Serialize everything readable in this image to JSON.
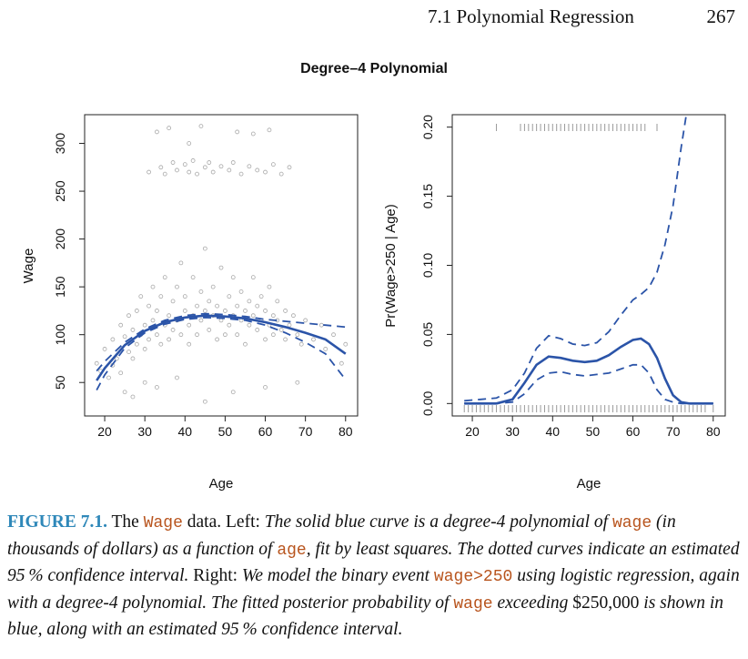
{
  "header": {
    "section": "7.1 Polynomial Regression",
    "page_number": "267"
  },
  "figure": {
    "suptitle": "Degree–4 Polynomial"
  },
  "chart_data": [
    {
      "type": "scatter",
      "title": "",
      "xlabel": "Age",
      "ylabel": "Wage",
      "xlim": [
        15,
        83
      ],
      "ylim": [
        15,
        330
      ],
      "xticks": [
        "20",
        "30",
        "40",
        "50",
        "60",
        "70",
        "80"
      ],
      "yticks": [
        "50",
        "100",
        "150",
        "200",
        "250",
        "300"
      ],
      "grid": false,
      "series": [
        {
          "style": "points",
          "color": "#a8a8a8",
          "points": [
            [
              18,
              70
            ],
            [
              19,
              62
            ],
            [
              20,
              85
            ],
            [
              21,
              55
            ],
            [
              22,
              95
            ],
            [
              22,
              68
            ],
            [
              23,
              75
            ],
            [
              24,
              110
            ],
            [
              24,
              60
            ],
            [
              25,
              98
            ],
            [
              26,
              82
            ],
            [
              26,
              120
            ],
            [
              27,
              105
            ],
            [
              27,
              75
            ],
            [
              28,
              125
            ],
            [
              28,
              90
            ],
            [
              29,
              100
            ],
            [
              29,
              140
            ],
            [
              30,
              110
            ],
            [
              30,
              85
            ],
            [
              31,
              130
            ],
            [
              31,
              95
            ],
            [
              32,
              115
            ],
            [
              32,
              150
            ],
            [
              33,
              100
            ],
            [
              33,
              125
            ],
            [
              34,
              140
            ],
            [
              34,
              90
            ],
            [
              35,
              110
            ],
            [
              35,
              160
            ],
            [
              36,
              120
            ],
            [
              36,
              95
            ],
            [
              37,
              135
            ],
            [
              37,
              105
            ],
            [
              38,
              150
            ],
            [
              38,
              115
            ],
            [
              39,
              100
            ],
            [
              39,
              175
            ],
            [
              40,
              125
            ],
            [
              40,
              140
            ],
            [
              41,
              110
            ],
            [
              41,
              90
            ],
            [
              42,
              160
            ],
            [
              42,
              120
            ],
            [
              43,
              130
            ],
            [
              43,
              100
            ],
            [
              44,
              145
            ],
            [
              44,
              115
            ],
            [
              45,
              125
            ],
            [
              45,
              190
            ],
            [
              46,
              105
            ],
            [
              46,
              135
            ],
            [
              47,
              120
            ],
            [
              47,
              150
            ],
            [
              48,
              95
            ],
            [
              48,
              130
            ],
            [
              49,
              115
            ],
            [
              49,
              170
            ],
            [
              50,
              125
            ],
            [
              50,
              100
            ],
            [
              51,
              140
            ],
            [
              51,
              110
            ],
            [
              52,
              120
            ],
            [
              52,
              160
            ],
            [
              53,
              100
            ],
            [
              53,
              130
            ],
            [
              54,
              115
            ],
            [
              54,
              145
            ],
            [
              55,
              125
            ],
            [
              55,
              90
            ],
            [
              56,
              135
            ],
            [
              56,
              110
            ],
            [
              57,
              120
            ],
            [
              57,
              160
            ],
            [
              58,
              105
            ],
            [
              58,
              130
            ],
            [
              59,
              115
            ],
            [
              59,
              140
            ],
            [
              60,
              125
            ],
            [
              60,
              95
            ],
            [
              61,
              110
            ],
            [
              61,
              150
            ],
            [
              62,
              120
            ],
            [
              62,
              100
            ],
            [
              63,
              135
            ],
            [
              63,
              115
            ],
            [
              64,
              105
            ],
            [
              65,
              125
            ],
            [
              65,
              95
            ],
            [
              66,
              110
            ],
            [
              67,
              120
            ],
            [
              68,
              100
            ],
            [
              69,
              90
            ],
            [
              70,
              115
            ],
            [
              72,
              95
            ],
            [
              74,
              110
            ],
            [
              75,
              85
            ],
            [
              77,
              100
            ],
            [
              79,
              70
            ],
            [
              80,
              90
            ],
            [
              31,
              270
            ],
            [
              34,
              275
            ],
            [
              35,
              268
            ],
            [
              37,
              280
            ],
            [
              38,
              272
            ],
            [
              40,
              278
            ],
            [
              41,
              270
            ],
            [
              42,
              282
            ],
            [
              43,
              268
            ],
            [
              45,
              275
            ],
            [
              46,
              280
            ],
            [
              47,
              270
            ],
            [
              49,
              276
            ],
            [
              51,
              272
            ],
            [
              52,
              280
            ],
            [
              54,
              268
            ],
            [
              56,
              276
            ],
            [
              58,
              272
            ],
            [
              60,
              270
            ],
            [
              62,
              278
            ],
            [
              64,
              268
            ],
            [
              66,
              275
            ],
            [
              33,
              312
            ],
            [
              36,
              316
            ],
            [
              41,
              300
            ],
            [
              44,
              318
            ],
            [
              53,
              312
            ],
            [
              57,
              310
            ],
            [
              61,
              314
            ],
            [
              25,
              40
            ],
            [
              27,
              35
            ],
            [
              30,
              50
            ],
            [
              33,
              45
            ],
            [
              38,
              55
            ],
            [
              45,
              30
            ],
            [
              52,
              40
            ],
            [
              60,
              45
            ],
            [
              68,
              50
            ]
          ]
        },
        {
          "style": "solid",
          "color": "#2b54a8",
          "x": [
            18,
            20,
            25,
            30,
            35,
            40,
            45,
            50,
            55,
            60,
            65,
            70,
            75,
            80
          ],
          "y": [
            52,
            65,
            89,
            104,
            113,
            118,
            120,
            119,
            117,
            113,
            108,
            102,
            95,
            80
          ]
        },
        {
          "style": "dashed",
          "color": "#2b54a8",
          "x": [
            18,
            20,
            25,
            30,
            35,
            40,
            45,
            50,
            55,
            60,
            65,
            70,
            75,
            80
          ],
          "y": [
            62,
            72,
            92,
            106,
            115,
            120,
            122,
            121,
            119,
            116,
            114,
            112,
            110,
            108
          ]
        },
        {
          "style": "dashed",
          "color": "#2b54a8",
          "x": [
            18,
            20,
            25,
            30,
            35,
            40,
            45,
            50,
            55,
            60,
            65,
            70,
            75,
            80
          ],
          "y": [
            42,
            58,
            86,
            102,
            111,
            116,
            118,
            117,
            115,
            110,
            102,
            92,
            80,
            53
          ]
        }
      ]
    },
    {
      "type": "line",
      "title": "",
      "xlabel": "Age",
      "ylabel": "Pr(Wage>250 | Age)",
      "xlim": [
        15,
        83
      ],
      "ylim": [
        -0.009,
        0.209
      ],
      "xticks": [
        "20",
        "30",
        "40",
        "50",
        "60",
        "70",
        "80"
      ],
      "yticks": [
        "0.00",
        "0.05",
        "0.10",
        "0.15",
        "0.20"
      ],
      "grid": false,
      "series": [
        {
          "style": "solid",
          "color": "#2b54a8",
          "x": [
            18,
            22,
            26,
            30,
            33,
            36,
            39,
            42,
            45,
            48,
            51,
            54,
            57,
            60,
            62,
            64,
            66,
            68,
            70,
            72,
            74,
            76,
            78,
            80
          ],
          "y": [
            0,
            0,
            0,
            0.003,
            0.015,
            0.028,
            0.034,
            0.033,
            0.031,
            0.03,
            0.031,
            0.035,
            0.041,
            0.046,
            0.047,
            0.043,
            0.033,
            0.018,
            0.006,
            0.001,
            0,
            0,
            0,
            0
          ]
        },
        {
          "style": "dashed",
          "color": "#2b54a8",
          "x": [
            18,
            22,
            26,
            30,
            33,
            36,
            39,
            42,
            45,
            48,
            51,
            54,
            57,
            60,
            62,
            64,
            66,
            68,
            70,
            72,
            73.3
          ],
          "y": [
            0.002,
            0.003,
            0.004,
            0.01,
            0.022,
            0.04,
            0.049,
            0.047,
            0.043,
            0.042,
            0.044,
            0.052,
            0.064,
            0.075,
            0.079,
            0.084,
            0.095,
            0.115,
            0.143,
            0.185,
            0.21
          ]
        },
        {
          "style": "dashed",
          "color": "#2b54a8",
          "x": [
            18,
            22,
            26,
            30,
            33,
            36,
            39,
            42,
            45,
            48,
            51,
            54,
            57,
            60,
            62,
            64,
            66,
            68,
            70,
            72,
            74,
            76,
            78,
            80
          ],
          "y": [
            0,
            0,
            0,
            0.001,
            0.007,
            0.017,
            0.022,
            0.023,
            0.021,
            0.02,
            0.021,
            0.022,
            0.025,
            0.028,
            0.028,
            0.022,
            0.01,
            0.003,
            0.001,
            0,
            0,
            0,
            0,
            0
          ]
        }
      ],
      "rug_top": [
        26,
        32,
        33,
        34,
        35,
        36,
        37,
        38,
        39,
        40,
        41,
        42,
        43,
        44,
        45,
        46,
        47,
        48,
        49,
        50,
        51,
        52,
        53,
        54,
        55,
        56,
        57,
        58,
        59,
        60,
        61,
        62,
        63,
        66
      ],
      "rug_bottom": [
        18,
        19,
        20,
        21,
        22,
        23,
        24,
        25,
        26,
        27,
        28,
        29,
        30,
        31,
        32,
        33,
        34,
        35,
        36,
        37,
        38,
        39,
        40,
        41,
        42,
        43,
        44,
        45,
        46,
        47,
        48,
        49,
        50,
        51,
        52,
        53,
        54,
        55,
        56,
        57,
        58,
        59,
        60,
        61,
        62,
        63,
        64,
        65,
        66,
        67,
        68,
        69,
        70,
        71,
        72,
        73,
        74,
        75,
        76,
        77,
        78,
        80
      ]
    }
  ],
  "caption": {
    "label": "FIGURE 7.1.",
    "t1": " The ",
    "c1": "Wage",
    "t2": " data. Left: ",
    "i1": "The solid blue curve is a degree-4 polynomial of ",
    "c2": "wage",
    "i2": " (in thousands of dollars) as a function of ",
    "c3": "age",
    "i3": ", fit by least squares. The dotted curves indicate an estimated 95 % confidence interval.",
    "t3": " Right: ",
    "i4": "We model the binary event ",
    "c4": "wage>250",
    "i5": " using logistic regression, again with a degree-4 polynomial. The fitted posterior probability of ",
    "c5": "wage",
    "i6": " exceeding ",
    "t4": "$250,000",
    "i7": " is shown in blue, along with an estimated 95 % confidence interval."
  }
}
